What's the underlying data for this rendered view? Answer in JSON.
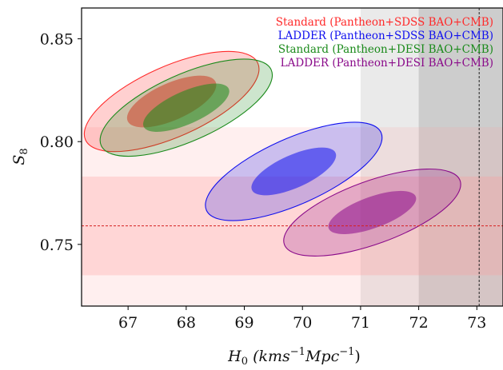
{
  "chart_data": {
    "type": "contour",
    "xlabel_main": "H",
    "xlabel_sub": "0",
    "xlabel_units": "(kms",
    "xlabel_units_sup": "−1",
    "xlabel_units2": "Mpc",
    "xlabel_units2_sup": "−1",
    "xlabel_units_close": ")",
    "ylabel_main": "S",
    "ylabel_sub": "8",
    "xlim": [
      66.2,
      73.45
    ],
    "ylim": [
      0.72,
      0.865
    ],
    "xticks": [
      "67",
      "68",
      "69",
      "70",
      "71",
      "72",
      "73"
    ],
    "yticks": [
      "0.75",
      "0.80",
      "0.85"
    ],
    "xtick_values": [
      67,
      68,
      69,
      70,
      71,
      72,
      73
    ],
    "ytick_values": [
      0.75,
      0.8,
      0.85
    ],
    "bands": {
      "h0_sigma1": [
        72.0,
        73.45
      ],
      "h0_sigma2": [
        71.0,
        73.45
      ],
      "h0_reference": 73.04,
      "s8_sigma1": [
        0.735,
        0.783
      ],
      "s8_sigma2": [
        0.712,
        0.807
      ],
      "s8_reference": 0.759
    },
    "series": [
      {
        "name": "Standard (Pantheon+SDSS BAO+CMB)",
        "color": "#ff2a2a",
        "center": [
          67.75,
          0.8195
        ],
        "sigma1": [
          0.57,
          0.0164
        ],
        "sigma2": [
          1.15,
          0.0312
        ],
        "rotation": -24
      },
      {
        "name": "LADDER (Pantheon+SDSS BAO+CMB)",
        "color": "#1010ee",
        "center": [
          69.85,
          0.7855
        ],
        "sigma1": [
          0.58,
          0.0145
        ],
        "sigma2": [
          1.25,
          0.0292
        ],
        "rotation": -24
      },
      {
        "name": "Standard (Pantheon+DESI BAO+CMB)",
        "color": "#1a8a1a",
        "center": [
          68.0,
          0.8165
        ],
        "sigma1": [
          0.6,
          0.0145
        ],
        "sigma2": [
          1.18,
          0.0295
        ],
        "rotation": -24
      },
      {
        "name": "LADDER (Pantheon+DESI BAO+CMB)",
        "color": "#8a0a8a",
        "center": [
          71.2,
          0.7655
        ],
        "sigma1": [
          0.62,
          0.0138
        ],
        "sigma2": [
          1.25,
          0.0278
        ],
        "rotation": -20
      }
    ]
  }
}
